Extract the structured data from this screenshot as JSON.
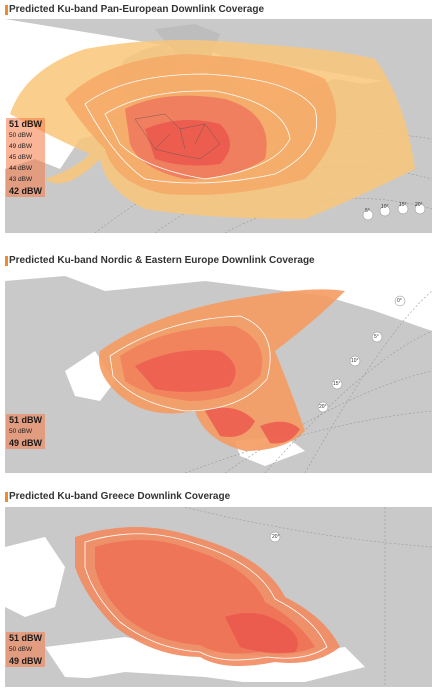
{
  "panels": [
    {
      "title": "Predicted Ku-band Pan-European Downlink Coverage",
      "legend": [
        "51 dBW",
        "50 dBW",
        "49 dBW",
        "45 dBW",
        "44 dBW",
        "43 dBW",
        "42 dBW"
      ],
      "elevation_labels": [
        "5°",
        "10°",
        "15°",
        "20°"
      ]
    },
    {
      "title": "Predicted Ku-band Nordic & Eastern Europe Downlink Coverage",
      "legend": [
        "51 dBW",
        "50 dBW",
        "49 dBW"
      ],
      "elevation_labels": [
        "0°",
        "5°",
        "10°",
        "15°",
        "20°"
      ]
    },
    {
      "title": "Predicted Ku-band Greece Downlink Coverage",
      "legend": [
        "51 dBW",
        "50 dBW",
        "49 dBW"
      ],
      "elevation_labels": [
        "20°"
      ]
    }
  ],
  "colors": {
    "land": "#c9c9c9",
    "sea": "#ffffff",
    "coverage_outer": "#f9c77a",
    "coverage_mid": "#f4a060",
    "coverage_inner": "#ef6e5a",
    "accent": "#f08a2c"
  }
}
